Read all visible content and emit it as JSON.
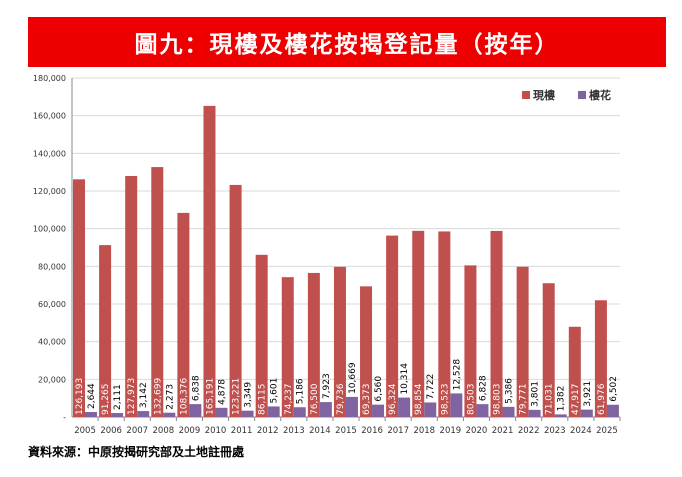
{
  "title": "圖九：現樓及樓花按揭登記量（按年）",
  "source": "資料來源：中原按揭研究部及土地註冊處",
  "chart_data": {
    "type": "bar",
    "categories": [
      "2005",
      "2006",
      "2007",
      "2008",
      "2009",
      "2010",
      "2011",
      "2012",
      "2013",
      "2014",
      "2015",
      "2016",
      "2017",
      "2018",
      "2019",
      "2020",
      "2021",
      "2022",
      "2023",
      "2024",
      "2025"
    ],
    "series": [
      {
        "name": "現樓",
        "color": "#c0504d",
        "values": [
          126193,
          91265,
          127973,
          132699,
          108376,
          165191,
          123221,
          86115,
          74237,
          76500,
          79736,
          69373,
          96324,
          98854,
          98523,
          80503,
          98803,
          79771,
          71031,
          47917,
          61976
        ]
      },
      {
        "name": "樓花",
        "color": "#8064a2",
        "values": [
          2644,
          2111,
          3142,
          2273,
          6838,
          4878,
          3349,
          5601,
          5186,
          7923,
          10669,
          6560,
          10314,
          7722,
          12528,
          6828,
          5386,
          3801,
          1382,
          3921,
          6502
        ]
      }
    ],
    "ylim": [
      0,
      180000
    ],
    "yticks": [
      "-",
      "20,000",
      "40,000",
      "60,000",
      "80,000",
      "100,000",
      "120,000",
      "140,000",
      "160,000",
      "180,000"
    ],
    "grid": true,
    "legend": "top-right"
  }
}
